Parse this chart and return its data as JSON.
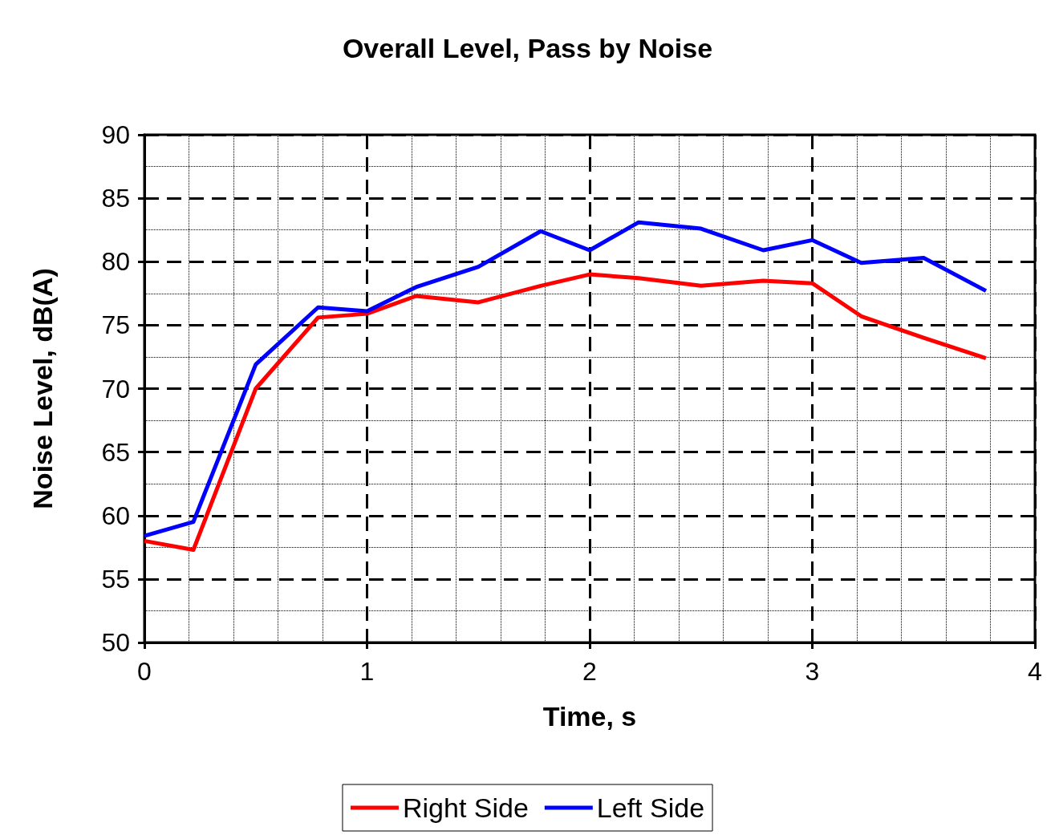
{
  "chart_data": {
    "type": "line",
    "title": "Overall Level, Pass by Noise",
    "xlabel": "Time, s",
    "ylabel": "Noise Level, dB(A)",
    "x": [
      0,
      0.22,
      0.5,
      0.78,
      1.0,
      1.22,
      1.5,
      1.78,
      2.0,
      2.22,
      2.5,
      2.78,
      3.0,
      3.22,
      3.5,
      3.78
    ],
    "series": [
      {
        "name": "Right Side",
        "color": "#ff0000",
        "values": [
          58.0,
          57.3,
          70.0,
          75.6,
          75.9,
          77.3,
          76.8,
          78.1,
          79.0,
          78.7,
          78.1,
          78.5,
          78.3,
          75.7,
          74.0,
          72.4
        ]
      },
      {
        "name": "Left Side",
        "color": "#0000ff",
        "values": [
          58.4,
          59.5,
          71.9,
          76.4,
          76.1,
          78.0,
          79.6,
          82.4,
          80.9,
          83.1,
          82.6,
          80.9,
          81.7,
          79.9,
          80.3,
          77.7
        ]
      }
    ],
    "xlim": [
      0,
      4
    ],
    "xticks": [
      0,
      1,
      2,
      3,
      4
    ],
    "ylim": [
      50,
      90
    ],
    "yticks": [
      50,
      55,
      60,
      65,
      70,
      75,
      80,
      85,
      90
    ],
    "grid": true,
    "legend": "bottom",
    "marker": "none",
    "line_style": "solid"
  }
}
